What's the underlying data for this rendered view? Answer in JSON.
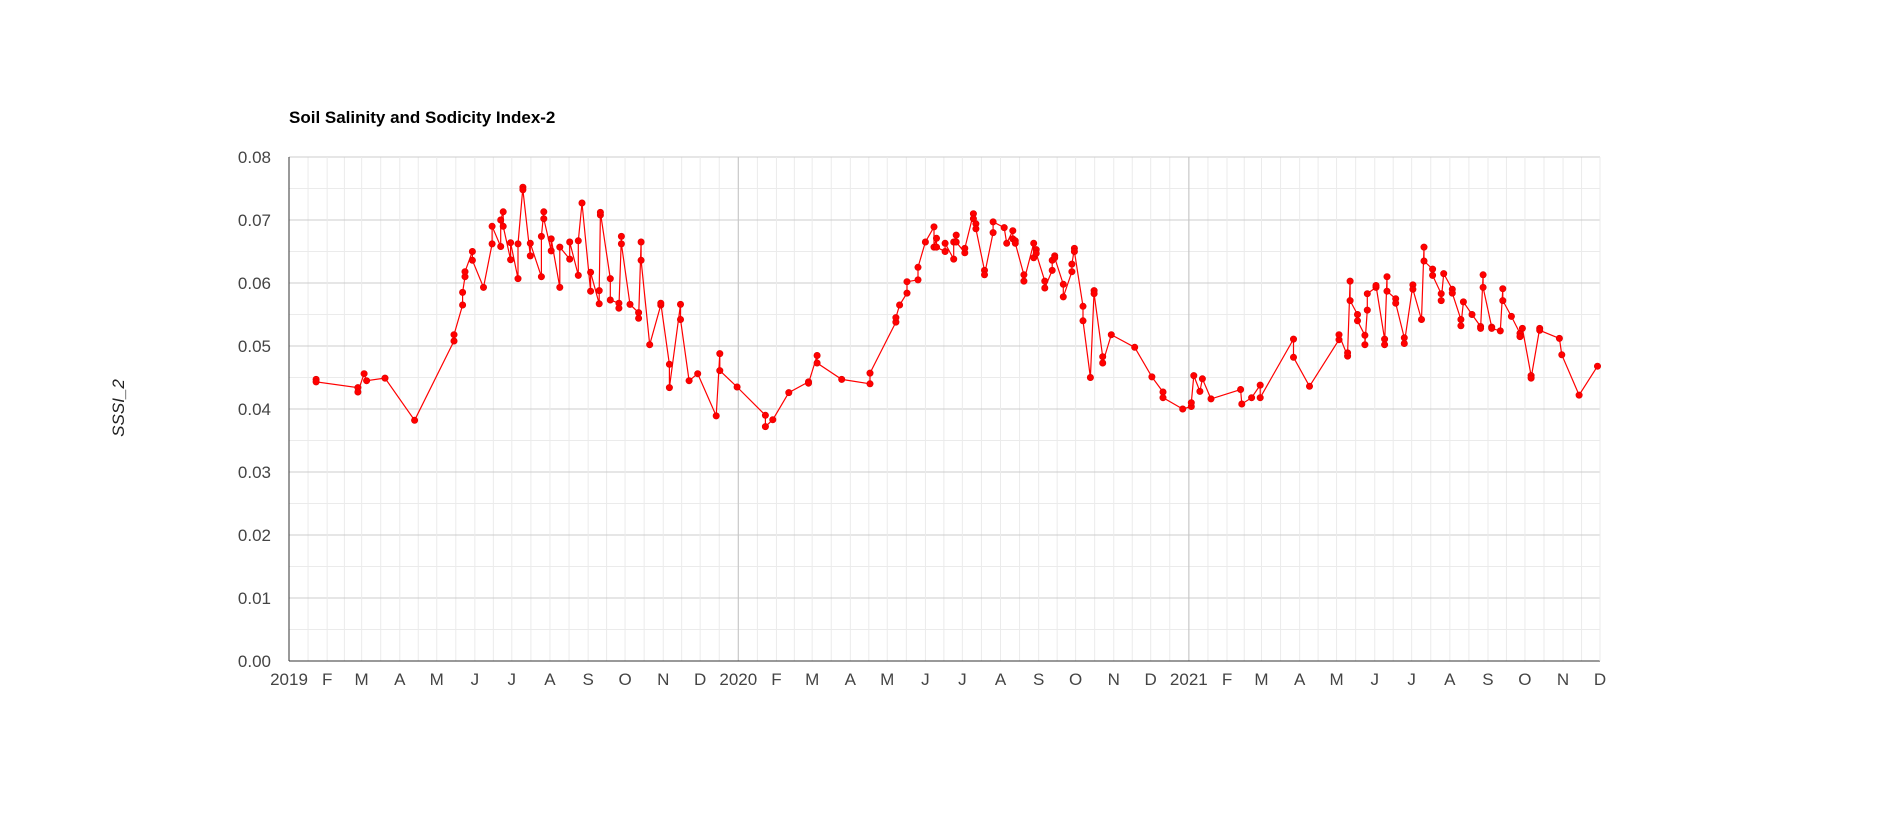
{
  "chart_data": {
    "type": "line",
    "title": "Soil Salinity and Sodicity Index-2",
    "xlabel": "",
    "ylabel": "SSSI_2",
    "x_range": [
      "2019-01-01",
      "2021-12-01"
    ],
    "ylim": [
      0,
      0.08
    ],
    "y_ticks": [
      "0.00",
      "0.01",
      "0.02",
      "0.03",
      "0.04",
      "0.05",
      "0.06",
      "0.07",
      "0.08"
    ],
    "x_ticks": [
      {
        "date": "2019-01-01",
        "label": "2019"
      },
      {
        "date": "2019-02-01",
        "label": "F"
      },
      {
        "date": "2019-03-01",
        "label": "M"
      },
      {
        "date": "2019-04-01",
        "label": "A"
      },
      {
        "date": "2019-05-01",
        "label": "M"
      },
      {
        "date": "2019-06-01",
        "label": "J"
      },
      {
        "date": "2019-07-01",
        "label": "J"
      },
      {
        "date": "2019-08-01",
        "label": "A"
      },
      {
        "date": "2019-09-01",
        "label": "S"
      },
      {
        "date": "2019-10-01",
        "label": "O"
      },
      {
        "date": "2019-11-01",
        "label": "N"
      },
      {
        "date": "2019-12-01",
        "label": "D"
      },
      {
        "date": "2020-01-01",
        "label": "2020"
      },
      {
        "date": "2020-02-01",
        "label": "F"
      },
      {
        "date": "2020-03-01",
        "label": "M"
      },
      {
        "date": "2020-04-01",
        "label": "A"
      },
      {
        "date": "2020-05-01",
        "label": "M"
      },
      {
        "date": "2020-06-01",
        "label": "J"
      },
      {
        "date": "2020-07-01",
        "label": "J"
      },
      {
        "date": "2020-08-01",
        "label": "A"
      },
      {
        "date": "2020-09-01",
        "label": "S"
      },
      {
        "date": "2020-10-01",
        "label": "O"
      },
      {
        "date": "2020-11-01",
        "label": "N"
      },
      {
        "date": "2020-12-01",
        "label": "D"
      },
      {
        "date": "2021-01-01",
        "label": "2021"
      },
      {
        "date": "2021-02-01",
        "label": "F"
      },
      {
        "date": "2021-03-01",
        "label": "M"
      },
      {
        "date": "2021-04-01",
        "label": "A"
      },
      {
        "date": "2021-05-01",
        "label": "M"
      },
      {
        "date": "2021-06-01",
        "label": "J"
      },
      {
        "date": "2021-07-01",
        "label": "J"
      },
      {
        "date": "2021-08-01",
        "label": "A"
      },
      {
        "date": "2021-09-01",
        "label": "S"
      },
      {
        "date": "2021-10-01",
        "label": "O"
      },
      {
        "date": "2021-11-01",
        "label": "N"
      },
      {
        "date": "2021-12-01",
        "label": "D"
      }
    ],
    "grid": true,
    "legend": "none",
    "color": "#ff0000",
    "series": [
      {
        "points": [
          [
            "2019-01-23",
            0.0447
          ],
          [
            "2019-01-23",
            0.0443
          ],
          [
            "2019-02-26",
            0.0434
          ],
          [
            "2019-02-26",
            0.0427
          ],
          [
            "2019-03-03",
            0.0456
          ],
          [
            "2019-03-05",
            0.0445
          ],
          [
            "2019-03-20",
            0.0449
          ],
          [
            "2019-04-13",
            0.0382
          ],
          [
            "2019-05-15",
            0.0508
          ],
          [
            "2019-05-15",
            0.0518
          ],
          [
            "2019-05-22",
            0.0565
          ],
          [
            "2019-05-22",
            0.0585
          ],
          [
            "2019-05-24",
            0.061
          ],
          [
            "2019-05-24",
            0.0618
          ],
          [
            "2019-05-30",
            0.065
          ],
          [
            "2019-05-30",
            0.0636
          ],
          [
            "2019-06-08",
            0.0593
          ],
          [
            "2019-06-15",
            0.0662
          ],
          [
            "2019-06-15",
            0.069
          ],
          [
            "2019-06-22",
            0.0658
          ],
          [
            "2019-06-22",
            0.07
          ],
          [
            "2019-06-24",
            0.0713
          ],
          [
            "2019-06-24",
            0.069
          ],
          [
            "2019-06-30",
            0.0637
          ],
          [
            "2019-06-30",
            0.0664
          ],
          [
            "2019-07-06",
            0.0607
          ],
          [
            "2019-07-06",
            0.0662
          ],
          [
            "2019-07-10",
            0.0752
          ],
          [
            "2019-07-10",
            0.0748
          ],
          [
            "2019-07-16",
            0.0643
          ],
          [
            "2019-07-16",
            0.0663
          ],
          [
            "2019-07-25",
            0.061
          ],
          [
            "2019-07-25",
            0.0674
          ],
          [
            "2019-07-27",
            0.0713
          ],
          [
            "2019-07-27",
            0.0702
          ],
          [
            "2019-08-02",
            0.0651
          ],
          [
            "2019-08-02",
            0.067
          ],
          [
            "2019-08-09",
            0.0593
          ],
          [
            "2019-08-09",
            0.0657
          ],
          [
            "2019-08-17",
            0.0638
          ],
          [
            "2019-08-17",
            0.0665
          ],
          [
            "2019-08-24",
            0.0612
          ],
          [
            "2019-08-24",
            0.0667
          ],
          [
            "2019-08-27",
            0.0727
          ],
          [
            "2019-09-03",
            0.0587
          ],
          [
            "2019-09-03",
            0.0617
          ],
          [
            "2019-09-10",
            0.0567
          ],
          [
            "2019-09-10",
            0.0588
          ],
          [
            "2019-09-11",
            0.0708
          ],
          [
            "2019-09-11",
            0.0712
          ],
          [
            "2019-09-19",
            0.0607
          ],
          [
            "2019-09-19",
            0.0573
          ],
          [
            "2019-09-26",
            0.0568
          ],
          [
            "2019-09-26",
            0.056
          ],
          [
            "2019-09-28",
            0.0674
          ],
          [
            "2019-09-28",
            0.0662
          ],
          [
            "2019-10-05",
            0.0566
          ],
          [
            "2019-10-12",
            0.0553
          ],
          [
            "2019-10-12",
            0.0544
          ],
          [
            "2019-10-14",
            0.0665
          ],
          [
            "2019-10-14",
            0.0636
          ],
          [
            "2019-10-21",
            0.0502
          ],
          [
            "2019-10-30",
            0.0565
          ],
          [
            "2019-10-30",
            0.0568
          ],
          [
            "2019-11-06",
            0.0471
          ],
          [
            "2019-11-06",
            0.0434
          ],
          [
            "2019-11-15",
            0.0566
          ],
          [
            "2019-11-15",
            0.0542
          ],
          [
            "2019-11-22",
            0.0445
          ],
          [
            "2019-11-29",
            0.0456
          ],
          [
            "2019-12-14",
            0.0389
          ],
          [
            "2019-12-17",
            0.0488
          ],
          [
            "2019-12-17",
            0.0461
          ],
          [
            "2019-12-31",
            0.0435
          ],
          [
            "2020-01-23",
            0.039
          ],
          [
            "2020-01-23",
            0.0372
          ],
          [
            "2020-01-29",
            0.0383
          ],
          [
            "2020-02-11",
            0.0426
          ],
          [
            "2020-02-27",
            0.0443
          ],
          [
            "2020-02-27",
            0.0441
          ],
          [
            "2020-03-05",
            0.0485
          ],
          [
            "2020-03-05",
            0.0473
          ],
          [
            "2020-03-25",
            0.0447
          ],
          [
            "2020-04-17",
            0.044
          ],
          [
            "2020-04-17",
            0.0457
          ],
          [
            "2020-05-08",
            0.0538
          ],
          [
            "2020-05-08",
            0.0545
          ],
          [
            "2020-05-11",
            0.0565
          ],
          [
            "2020-05-17",
            0.0584
          ],
          [
            "2020-05-17",
            0.0602
          ],
          [
            "2020-05-26",
            0.0605
          ],
          [
            "2020-05-26",
            0.0625
          ],
          [
            "2020-06-01",
            0.0665
          ],
          [
            "2020-06-08",
            0.0689
          ],
          [
            "2020-06-08",
            0.0657
          ],
          [
            "2020-06-10",
            0.0671
          ],
          [
            "2020-06-10",
            0.0657
          ],
          [
            "2020-06-17",
            0.065
          ],
          [
            "2020-06-17",
            0.0663
          ],
          [
            "2020-06-24",
            0.0638
          ],
          [
            "2020-06-24",
            0.0665
          ],
          [
            "2020-06-26",
            0.0676
          ],
          [
            "2020-06-26",
            0.0665
          ],
          [
            "2020-07-03",
            0.0648
          ],
          [
            "2020-07-03",
            0.0655
          ],
          [
            "2020-07-10",
            0.071
          ],
          [
            "2020-07-10",
            0.0702
          ],
          [
            "2020-07-12",
            0.0694
          ],
          [
            "2020-07-12",
            0.0686
          ],
          [
            "2020-07-19",
            0.062
          ],
          [
            "2020-07-19",
            0.0613
          ],
          [
            "2020-07-26",
            0.068
          ],
          [
            "2020-07-26",
            0.0697
          ],
          [
            "2020-08-04",
            0.0688
          ],
          [
            "2020-08-06",
            0.0663
          ],
          [
            "2020-08-11",
            0.0683
          ],
          [
            "2020-08-11",
            0.067
          ],
          [
            "2020-08-13",
            0.0667
          ],
          [
            "2020-08-13",
            0.0663
          ],
          [
            "2020-08-20",
            0.0613
          ],
          [
            "2020-08-20",
            0.0603
          ],
          [
            "2020-08-28",
            0.0663
          ],
          [
            "2020-08-28",
            0.064
          ],
          [
            "2020-08-30",
            0.0653
          ],
          [
            "2020-08-30",
            0.0647
          ],
          [
            "2020-09-06",
            0.0603
          ],
          [
            "2020-09-06",
            0.0592
          ],
          [
            "2020-09-12",
            0.062
          ],
          [
            "2020-09-12",
            0.0636
          ],
          [
            "2020-09-14",
            0.0643
          ],
          [
            "2020-09-14",
            0.064
          ],
          [
            "2020-09-21",
            0.0598
          ],
          [
            "2020-09-21",
            0.0578
          ],
          [
            "2020-09-28",
            0.0618
          ],
          [
            "2020-09-28",
            0.063
          ],
          [
            "2020-09-30",
            0.0655
          ],
          [
            "2020-09-30",
            0.065
          ],
          [
            "2020-10-07",
            0.0563
          ],
          [
            "2020-10-07",
            0.054
          ],
          [
            "2020-10-13",
            0.045
          ],
          [
            "2020-10-16",
            0.0588
          ],
          [
            "2020-10-16",
            0.0583
          ],
          [
            "2020-10-23",
            0.0483
          ],
          [
            "2020-10-23",
            0.0473
          ],
          [
            "2020-10-30",
            0.0518
          ],
          [
            "2020-11-18",
            0.0498
          ],
          [
            "2020-12-02",
            0.0451
          ],
          [
            "2020-12-11",
            0.0427
          ],
          [
            "2020-12-11",
            0.0418
          ],
          [
            "2020-12-27",
            0.04
          ],
          [
            "2021-01-03",
            0.0404
          ],
          [
            "2021-01-03",
            0.041
          ],
          [
            "2021-01-05",
            0.0453
          ],
          [
            "2021-01-10",
            0.0428
          ],
          [
            "2021-01-12",
            0.0448
          ],
          [
            "2021-01-19",
            0.0416
          ],
          [
            "2021-02-12",
            0.0431
          ],
          [
            "2021-02-13",
            0.0408
          ],
          [
            "2021-02-21",
            0.0418
          ],
          [
            "2021-02-28",
            0.0438
          ],
          [
            "2021-02-28",
            0.0418
          ],
          [
            "2021-03-27",
            0.0511
          ],
          [
            "2021-03-27",
            0.0482
          ],
          [
            "2021-04-09",
            0.0436
          ],
          [
            "2021-05-03",
            0.051
          ],
          [
            "2021-05-03",
            0.0518
          ],
          [
            "2021-05-10",
            0.0484
          ],
          [
            "2021-05-10",
            0.0489
          ],
          [
            "2021-05-12",
            0.0603
          ],
          [
            "2021-05-12",
            0.0572
          ],
          [
            "2021-05-18",
            0.055
          ],
          [
            "2021-05-18",
            0.054
          ],
          [
            "2021-05-24",
            0.0517
          ],
          [
            "2021-05-24",
            0.0502
          ],
          [
            "2021-05-26",
            0.0557
          ],
          [
            "2021-05-26",
            0.0583
          ],
          [
            "2021-06-02",
            0.0593
          ],
          [
            "2021-06-02",
            0.0596
          ],
          [
            "2021-06-09",
            0.0511
          ],
          [
            "2021-06-09",
            0.0502
          ],
          [
            "2021-06-11",
            0.061
          ],
          [
            "2021-06-11",
            0.0587
          ],
          [
            "2021-06-18",
            0.0575
          ],
          [
            "2021-06-18",
            0.0568
          ],
          [
            "2021-06-25",
            0.0513
          ],
          [
            "2021-06-25",
            0.0504
          ],
          [
            "2021-07-02",
            0.0597
          ],
          [
            "2021-07-02",
            0.059
          ],
          [
            "2021-07-09",
            0.0542
          ],
          [
            "2021-07-11",
            0.0657
          ],
          [
            "2021-07-11",
            0.0635
          ],
          [
            "2021-07-18",
            0.0622
          ],
          [
            "2021-07-18",
            0.0612
          ],
          [
            "2021-07-25",
            0.0583
          ],
          [
            "2021-07-25",
            0.0572
          ],
          [
            "2021-07-27",
            0.0615
          ],
          [
            "2021-08-03",
            0.059
          ],
          [
            "2021-08-03",
            0.0584
          ],
          [
            "2021-08-10",
            0.0542
          ],
          [
            "2021-08-10",
            0.0532
          ],
          [
            "2021-08-12",
            0.057
          ],
          [
            "2021-08-19",
            0.055
          ],
          [
            "2021-08-26",
            0.0531
          ],
          [
            "2021-08-26",
            0.0528
          ],
          [
            "2021-08-28",
            0.0613
          ],
          [
            "2021-08-28",
            0.0593
          ],
          [
            "2021-09-04",
            0.053
          ],
          [
            "2021-09-04",
            0.0528
          ],
          [
            "2021-09-11",
            0.0524
          ],
          [
            "2021-09-13",
            0.0591
          ],
          [
            "2021-09-13",
            0.0572
          ],
          [
            "2021-09-20",
            0.0547
          ],
          [
            "2021-09-27",
            0.052
          ],
          [
            "2021-09-27",
            0.0515
          ],
          [
            "2021-09-29",
            0.0528
          ],
          [
            "2021-10-06",
            0.0453
          ],
          [
            "2021-10-06",
            0.0449
          ],
          [
            "2021-10-13",
            0.0528
          ],
          [
            "2021-10-13",
            0.0525
          ],
          [
            "2021-10-29",
            0.0512
          ],
          [
            "2021-10-31",
            0.0486
          ],
          [
            "2021-11-14",
            0.0422
          ],
          [
            "2021-11-29",
            0.0468
          ]
        ]
      }
    ]
  }
}
